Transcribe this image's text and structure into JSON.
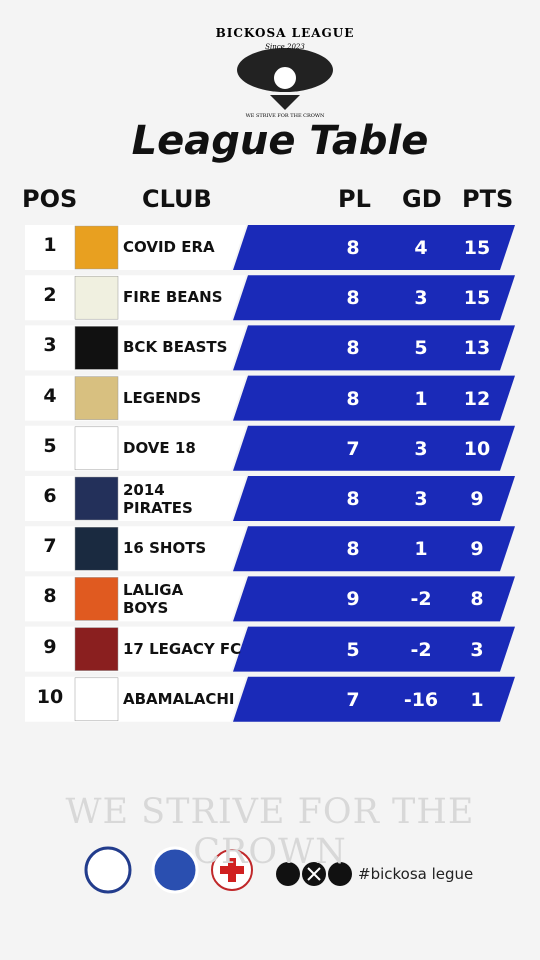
{
  "header": {
    "league": "BICKOSA LEAGUE",
    "since": "Since 2023",
    "motto": "WE STRIVE FOR THE CROWN",
    "title": "League Table"
  },
  "table": {
    "columns": [
      "POS",
      "CLUB",
      "PL",
      "GD",
      "PTS"
    ],
    "rows": [
      [
        1,
        "COVID ERA",
        8,
        4,
        15
      ],
      [
        2,
        "FIRE BEANS",
        8,
        3,
        15
      ],
      [
        3,
        "BCK BEASTS",
        8,
        5,
        13
      ],
      [
        4,
        "LEGENDS",
        8,
        1,
        12
      ],
      [
        5,
        "DOVE 18",
        7,
        3,
        10
      ],
      [
        6,
        "2014\nPIRATES",
        8,
        3,
        9
      ],
      [
        7,
        "16 SHOTS",
        8,
        1,
        9
      ],
      [
        8,
        "LALIGA\nBOYS",
        9,
        -2,
        8
      ],
      [
        9,
        "17 LEGACY FC",
        5,
        -2,
        3
      ],
      [
        10,
        "ABAMALACHI",
        7,
        -16,
        1
      ]
    ]
  },
  "footer": {
    "motto": "WE STRIVE FOR THE CROWN",
    "hashtag": "#bickosa legue"
  }
}
